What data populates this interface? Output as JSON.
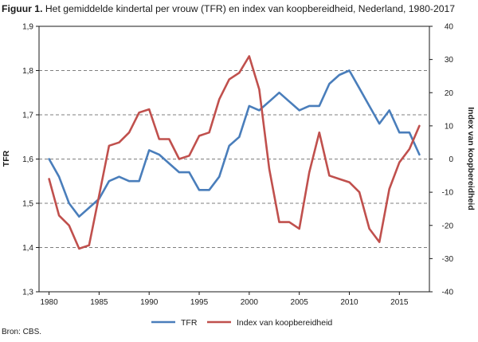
{
  "title": {
    "lead": "Figuur 1.",
    "text": "Het gemiddelde kindertal per vrouw (TFR) en index van koopbereidheid, Nederland, 1980-2017"
  },
  "source": "Bron: CBS.",
  "chart_data": {
    "type": "line",
    "xlabel": "",
    "ylabel": "TFR",
    "y2label": "Index van koopbereidheid",
    "xlim": [
      1979,
      2018
    ],
    "ylim": [
      1.3,
      1.9
    ],
    "y2lim": [
      -40,
      40
    ],
    "x_ticks": [
      1980,
      1985,
      1990,
      1995,
      2000,
      2005,
      2010,
      2015
    ],
    "y_ticks": [
      "1,3",
      "1,4",
      "1,5",
      "1,6",
      "1,7",
      "1,8",
      "1,9"
    ],
    "y2_ticks": [
      "-40",
      "-30",
      "-20",
      "-10",
      "0",
      "10",
      "20",
      "30",
      "40"
    ],
    "grid": "horizontal dashed",
    "legend_position": "bottom",
    "x": [
      1980,
      1981,
      1982,
      1983,
      1984,
      1985,
      1986,
      1987,
      1988,
      1989,
      1990,
      1991,
      1992,
      1993,
      1994,
      1995,
      1996,
      1997,
      1998,
      1999,
      2000,
      2001,
      2002,
      2003,
      2004,
      2005,
      2006,
      2007,
      2008,
      2009,
      2010,
      2011,
      2012,
      2013,
      2014,
      2015,
      2016,
      2017
    ],
    "series": [
      {
        "name": "TFR",
        "axis": "left",
        "color": "#4a7ebb",
        "values": [
          1.6,
          1.56,
          1.5,
          1.47,
          1.49,
          1.51,
          1.55,
          1.56,
          1.55,
          1.55,
          1.62,
          1.61,
          1.59,
          1.57,
          1.57,
          1.53,
          1.53,
          1.56,
          1.63,
          1.65,
          1.72,
          1.71,
          1.73,
          1.75,
          1.73,
          1.71,
          1.72,
          1.72,
          1.77,
          1.79,
          1.8,
          1.76,
          1.72,
          1.68,
          1.71,
          1.66,
          1.66,
          1.61
        ]
      },
      {
        "name": "Index van koopbereidheid",
        "axis": "right",
        "color": "#c0504d",
        "values": [
          -6,
          -17,
          -20,
          -27,
          -26,
          -11,
          4,
          5,
          8,
          14,
          15,
          6,
          6,
          0,
          1,
          7,
          8,
          18,
          24,
          26,
          31,
          21,
          -3,
          -19,
          -19,
          -21,
          -4,
          8,
          -5,
          -6,
          -7,
          -10,
          -21,
          -25,
          -9,
          -1,
          3,
          10
        ]
      }
    ]
  }
}
